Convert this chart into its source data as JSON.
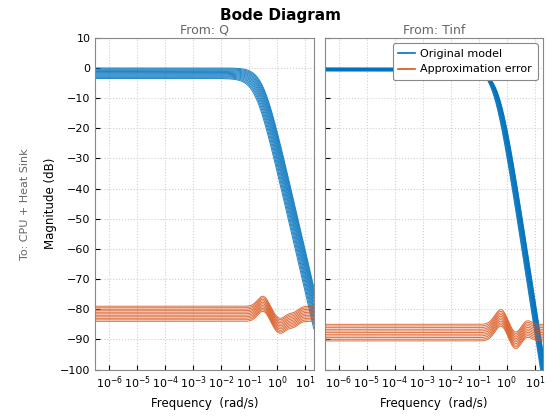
{
  "title": "Bode Diagram",
  "title_fontsize": 11,
  "title_fontweight": "bold",
  "ax1_title": "From: Q",
  "ax2_title": "From: Tinf",
  "ylabel": "Magnitude (dB)",
  "ylabel_side": "To: CPU + Heat Sink",
  "xlabel": "Frequency  (rad/s)",
  "ylim": [
    -100,
    10
  ],
  "yticks": [
    -100,
    -90,
    -80,
    -70,
    -60,
    -50,
    -40,
    -30,
    -20,
    -10,
    0,
    10
  ],
  "freq_min_exp": -6.5,
  "freq_max_exp": 1.3,
  "blue_color": "#0072BD",
  "orange_color": "#D95319",
  "legend_labels": [
    "Original model",
    "Approximation error"
  ],
  "n_blue_lines": 13,
  "n_orange_lines": 11,
  "background_color": "#ffffff",
  "grid_color": "#d0d0d0",
  "ax_facecolor": "#ffffff"
}
